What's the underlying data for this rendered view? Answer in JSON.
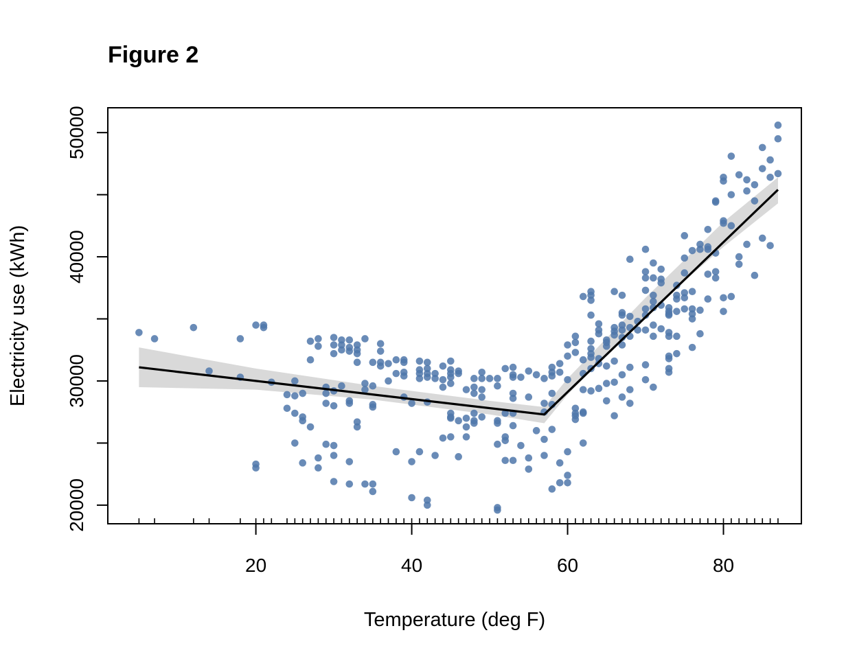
{
  "chart_data": {
    "type": "scatter",
    "title": "Figure 2",
    "xlabel": "Temperature (deg F)",
    "ylabel": "Electricity use (kWh)",
    "xlim": [
      1,
      90
    ],
    "ylim": [
      18500,
      52000
    ],
    "x_ticks": [
      20,
      40,
      60,
      80
    ],
    "y_ticks": [
      20000,
      30000,
      40000,
      50000
    ],
    "grid": false,
    "legend": "none",
    "colors": {
      "points": "#4f77aa",
      "fit_line": "#000000",
      "confidence_band": "#d9d9d9"
    },
    "rug_x": [
      5,
      7,
      12,
      14,
      18,
      20,
      21,
      22,
      24,
      25,
      26,
      27,
      28,
      29,
      30,
      31,
      32,
      33,
      34,
      35,
      36,
      37,
      38,
      39,
      40,
      41,
      42,
      43,
      44,
      45,
      46,
      47,
      48,
      49,
      50,
      51,
      52,
      53,
      54,
      55,
      56,
      57,
      58,
      59,
      60,
      61,
      62,
      63,
      64,
      65,
      66,
      67,
      68,
      69,
      70,
      71,
      72,
      73,
      74,
      75,
      76,
      77,
      78,
      79,
      80,
      81,
      82,
      83,
      84,
      85,
      86,
      87
    ],
    "fit_line": {
      "x": [
        5,
        57,
        87
      ],
      "y": [
        31100,
        27300,
        45400
      ]
    },
    "confidence_band": {
      "x": [
        5,
        20,
        35,
        50,
        57,
        60,
        70,
        80,
        87
      ],
      "upper": [
        32700,
        31000,
        29600,
        28400,
        27900,
        30200,
        36700,
        42800,
        46400
      ],
      "lower": [
        29500,
        29300,
        28500,
        27300,
        26600,
        28900,
        35300,
        40800,
        44300
      ]
    },
    "points": [
      [
        5,
        33900
      ],
      [
        7,
        33400
      ],
      [
        12,
        34300
      ],
      [
        14,
        30800
      ],
      [
        18,
        33400
      ],
      [
        18,
        30300
      ],
      [
        20,
        34500
      ],
      [
        20,
        23300
      ],
      [
        20,
        23000
      ],
      [
        21,
        34500
      ],
      [
        21,
        34300
      ],
      [
        22,
        29900
      ],
      [
        24,
        28900
      ],
      [
        24,
        27800
      ],
      [
        25,
        30000
      ],
      [
        25,
        28800
      ],
      [
        25,
        27400
      ],
      [
        25,
        25000
      ],
      [
        26,
        29000
      ],
      [
        26,
        27100
      ],
      [
        26,
        26800
      ],
      [
        26,
        23400
      ],
      [
        27,
        33200
      ],
      [
        27,
        31700
      ],
      [
        27,
        26300
      ],
      [
        28,
        33400
      ],
      [
        28,
        32800
      ],
      [
        28,
        23800
      ],
      [
        28,
        23000
      ],
      [
        29,
        29500
      ],
      [
        29,
        29000
      ],
      [
        29,
        28200
      ],
      [
        29,
        24900
      ],
      [
        30,
        33500
      ],
      [
        30,
        32900
      ],
      [
        30,
        32200
      ],
      [
        30,
        29200
      ],
      [
        30,
        28000
      ],
      [
        30,
        24800
      ],
      [
        30,
        24000
      ],
      [
        30,
        21900
      ],
      [
        31,
        33300
      ],
      [
        31,
        32900
      ],
      [
        31,
        32500
      ],
      [
        31,
        29600
      ],
      [
        32,
        33300
      ],
      [
        32,
        32700
      ],
      [
        32,
        32400
      ],
      [
        32,
        28400
      ],
      [
        32,
        28200
      ],
      [
        32,
        23500
      ],
      [
        32,
        21700
      ],
      [
        33,
        32900
      ],
      [
        33,
        32500
      ],
      [
        33,
        32200
      ],
      [
        33,
        31500
      ],
      [
        33,
        26700
      ],
      [
        33,
        26300
      ],
      [
        34,
        33400
      ],
      [
        34,
        29800
      ],
      [
        34,
        29300
      ],
      [
        34,
        21700
      ],
      [
        35,
        31500
      ],
      [
        35,
        29600
      ],
      [
        35,
        28100
      ],
      [
        35,
        27900
      ],
      [
        35,
        21700
      ],
      [
        35,
        21100
      ],
      [
        36,
        33000
      ],
      [
        36,
        32400
      ],
      [
        36,
        31500
      ],
      [
        36,
        31200
      ],
      [
        37,
        31400
      ],
      [
        37,
        30000
      ],
      [
        38,
        31700
      ],
      [
        38,
        30600
      ],
      [
        38,
        24300
      ],
      [
        39,
        31700
      ],
      [
        39,
        31500
      ],
      [
        39,
        30700
      ],
      [
        39,
        30400
      ],
      [
        39,
        28700
      ],
      [
        40,
        28200
      ],
      [
        40,
        23500
      ],
      [
        40,
        20600
      ],
      [
        41,
        31600
      ],
      [
        41,
        30900
      ],
      [
        41,
        30600
      ],
      [
        41,
        30200
      ],
      [
        41,
        24300
      ],
      [
        42,
        31500
      ],
      [
        42,
        31000
      ],
      [
        42,
        30600
      ],
      [
        42,
        30300
      ],
      [
        42,
        28300
      ],
      [
        42,
        20400
      ],
      [
        42,
        20000
      ],
      [
        43,
        30600
      ],
      [
        43,
        30200
      ],
      [
        43,
        24000
      ],
      [
        44,
        31200
      ],
      [
        44,
        30100
      ],
      [
        44,
        29500
      ],
      [
        44,
        25400
      ],
      [
        45,
        31600
      ],
      [
        45,
        30900
      ],
      [
        45,
        30600
      ],
      [
        45,
        30300
      ],
      [
        45,
        29800
      ],
      [
        45,
        27400
      ],
      [
        45,
        27100
      ],
      [
        45,
        27000
      ],
      [
        45,
        25500
      ],
      [
        46,
        30800
      ],
      [
        46,
        30600
      ],
      [
        46,
        26800
      ],
      [
        46,
        23900
      ],
      [
        47,
        29300
      ],
      [
        47,
        27000
      ],
      [
        47,
        26300
      ],
      [
        47,
        25500
      ],
      [
        48,
        30200
      ],
      [
        48,
        29500
      ],
      [
        48,
        29000
      ],
      [
        48,
        26800
      ],
      [
        48,
        26600
      ],
      [
        48,
        27400
      ],
      [
        49,
        30700
      ],
      [
        49,
        30200
      ],
      [
        49,
        29300
      ],
      [
        49,
        28700
      ],
      [
        49,
        27100
      ],
      [
        50,
        30200
      ],
      [
        51,
        30200
      ],
      [
        51,
        29600
      ],
      [
        51,
        26800
      ],
      [
        51,
        26600
      ],
      [
        51,
        24900
      ],
      [
        51,
        19800
      ],
      [
        51,
        19600
      ],
      [
        52,
        31000
      ],
      [
        52,
        27400
      ],
      [
        52,
        25500
      ],
      [
        52,
        25200
      ],
      [
        52,
        23600
      ],
      [
        53,
        31100
      ],
      [
        53,
        30500
      ],
      [
        53,
        30300
      ],
      [
        53,
        29000
      ],
      [
        53,
        28600
      ],
      [
        53,
        27400
      ],
      [
        53,
        26400
      ],
      [
        53,
        23600
      ],
      [
        54,
        30300
      ],
      [
        54,
        24800
      ],
      [
        55,
        30800
      ],
      [
        55,
        28700
      ],
      [
        55,
        23800
      ],
      [
        55,
        22900
      ],
      [
        56,
        30500
      ],
      [
        56,
        26000
      ],
      [
        57,
        30200
      ],
      [
        57,
        28200
      ],
      [
        57,
        27500
      ],
      [
        57,
        25300
      ],
      [
        57,
        24000
      ],
      [
        58,
        31100
      ],
      [
        58,
        30700
      ],
      [
        58,
        30400
      ],
      [
        58,
        29000
      ],
      [
        58,
        28100
      ],
      [
        58,
        26100
      ],
      [
        58,
        21300
      ],
      [
        59,
        31400
      ],
      [
        59,
        30700
      ],
      [
        59,
        23400
      ],
      [
        59,
        21800
      ],
      [
        60,
        32900
      ],
      [
        60,
        32000
      ],
      [
        60,
        30100
      ],
      [
        60,
        24300
      ],
      [
        60,
        22400
      ],
      [
        60,
        21800
      ],
      [
        61,
        33600
      ],
      [
        61,
        33100
      ],
      [
        61,
        32300
      ],
      [
        61,
        27800
      ],
      [
        61,
        27200
      ],
      [
        61,
        26900
      ],
      [
        61,
        27400
      ],
      [
        62,
        36800
      ],
      [
        62,
        31700
      ],
      [
        62,
        30600
      ],
      [
        62,
        29300
      ],
      [
        62,
        27400
      ],
      [
        62,
        25000
      ],
      [
        62,
        27500
      ],
      [
        63,
        37200
      ],
      [
        63,
        36900
      ],
      [
        63,
        36500
      ],
      [
        63,
        35300
      ],
      [
        63,
        33200
      ],
      [
        63,
        32600
      ],
      [
        63,
        32200
      ],
      [
        63,
        31900
      ],
      [
        63,
        31000
      ],
      [
        63,
        29200
      ],
      [
        64,
        34600
      ],
      [
        64,
        34100
      ],
      [
        64,
        33800
      ],
      [
        64,
        31800
      ],
      [
        64,
        29400
      ],
      [
        64,
        31400
      ],
      [
        65,
        33300
      ],
      [
        65,
        33100
      ],
      [
        65,
        32800
      ],
      [
        65,
        31200
      ],
      [
        65,
        29800
      ],
      [
        65,
        28400
      ],
      [
        66,
        37200
      ],
      [
        66,
        34300
      ],
      [
        66,
        34000
      ],
      [
        66,
        33700
      ],
      [
        66,
        31600
      ],
      [
        66,
        29900
      ],
      [
        66,
        27200
      ],
      [
        67,
        36900
      ],
      [
        67,
        35500
      ],
      [
        67,
        35300
      ],
      [
        67,
        34500
      ],
      [
        67,
        34100
      ],
      [
        67,
        33500
      ],
      [
        67,
        32900
      ],
      [
        67,
        30500
      ],
      [
        67,
        28700
      ],
      [
        68,
        39800
      ],
      [
        68,
        35200
      ],
      [
        68,
        34300
      ],
      [
        68,
        33600
      ],
      [
        68,
        31100
      ],
      [
        68,
        29300
      ],
      [
        68,
        28200
      ],
      [
        69,
        34800
      ],
      [
        69,
        34100
      ],
      [
        70,
        40600
      ],
      [
        70,
        38800
      ],
      [
        70,
        38300
      ],
      [
        70,
        37300
      ],
      [
        70,
        35800
      ],
      [
        70,
        35300
      ],
      [
        70,
        34100
      ],
      [
        70,
        31300
      ],
      [
        70,
        30100
      ],
      [
        71,
        39500
      ],
      [
        71,
        38300
      ],
      [
        71,
        36900
      ],
      [
        71,
        36400
      ],
      [
        71,
        35900
      ],
      [
        71,
        34500
      ],
      [
        71,
        33600
      ],
      [
        71,
        29500
      ],
      [
        72,
        39000
      ],
      [
        72,
        38200
      ],
      [
        72,
        37900
      ],
      [
        72,
        36100
      ],
      [
        72,
        34200
      ],
      [
        73,
        35900
      ],
      [
        73,
        35600
      ],
      [
        73,
        35400
      ],
      [
        73,
        35300
      ],
      [
        73,
        33900
      ],
      [
        73,
        33600
      ],
      [
        73,
        32000
      ],
      [
        73,
        31800
      ],
      [
        73,
        31000
      ],
      [
        73,
        30700
      ],
      [
        74,
        37700
      ],
      [
        74,
        36900
      ],
      [
        74,
        36600
      ],
      [
        74,
        35600
      ],
      [
        74,
        33600
      ],
      [
        74,
        32200
      ],
      [
        75,
        41700
      ],
      [
        75,
        39900
      ],
      [
        75,
        38700
      ],
      [
        75,
        37100
      ],
      [
        75,
        36700
      ],
      [
        75,
        35800
      ],
      [
        76,
        40500
      ],
      [
        76,
        37200
      ],
      [
        76,
        35800
      ],
      [
        76,
        35400
      ],
      [
        76,
        35000
      ],
      [
        76,
        32700
      ],
      [
        77,
        41000
      ],
      [
        77,
        40600
      ],
      [
        77,
        35700
      ],
      [
        77,
        33800
      ],
      [
        78,
        42200
      ],
      [
        78,
        40800
      ],
      [
        78,
        40600
      ],
      [
        78,
        38600
      ],
      [
        78,
        36600
      ],
      [
        79,
        44500
      ],
      [
        79,
        44400
      ],
      [
        79,
        40300
      ],
      [
        79,
        38800
      ],
      [
        79,
        38300
      ],
      [
        80,
        46400
      ],
      [
        80,
        46100
      ],
      [
        80,
        42900
      ],
      [
        80,
        42700
      ],
      [
        80,
        36700
      ],
      [
        80,
        35600
      ],
      [
        81,
        48100
      ],
      [
        81,
        45000
      ],
      [
        81,
        42500
      ],
      [
        81,
        36800
      ],
      [
        82,
        46600
      ],
      [
        82,
        40000
      ],
      [
        82,
        39400
      ],
      [
        83,
        46200
      ],
      [
        83,
        45300
      ],
      [
        83,
        41000
      ],
      [
        84,
        45800
      ],
      [
        84,
        44500
      ],
      [
        84,
        38500
      ],
      [
        85,
        48800
      ],
      [
        85,
        47100
      ],
      [
        85,
        41500
      ],
      [
        86,
        47800
      ],
      [
        86,
        46400
      ],
      [
        86,
        40900
      ],
      [
        87,
        50600
      ],
      [
        87,
        49500
      ],
      [
        87,
        46700
      ]
    ]
  }
}
